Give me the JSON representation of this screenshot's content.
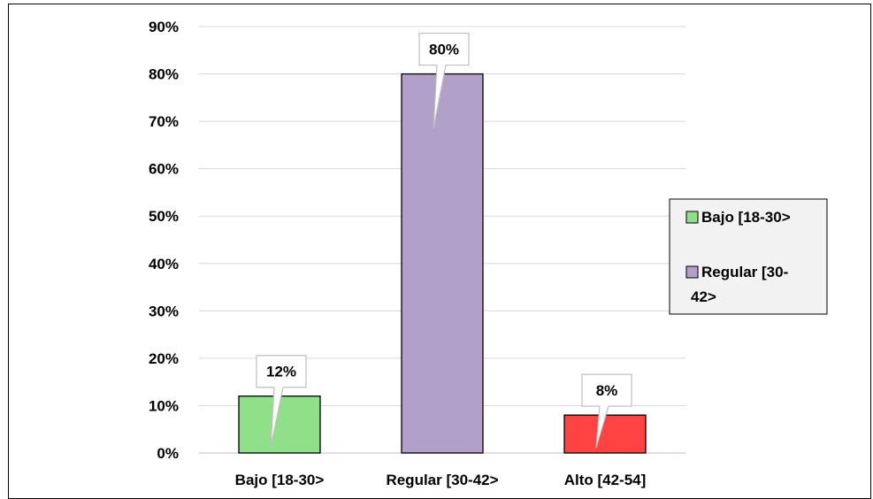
{
  "chart_data": {
    "type": "bar",
    "categories": [
      "Bajo [18-30>",
      "Regular [30-42>",
      "Alto [42-54]"
    ],
    "values": [
      12,
      80,
      8
    ],
    "value_labels": [
      "12%",
      "80%",
      "8%"
    ],
    "colors": [
      "#90E08A",
      "#B1A0C7",
      "#FF4343"
    ],
    "yticks": [
      "0%",
      "10%",
      "20%",
      "30%",
      "40%",
      "50%",
      "60%",
      "70%",
      "80%",
      "90%"
    ],
    "ylim": [
      0,
      90
    ],
    "grid": true,
    "legend": {
      "placement": "right",
      "entries": [
        {
          "lines": [
            "Bajo [18-30>"
          ],
          "color": "#90E08A"
        },
        {
          "lines": [
            "Regular [30-",
            "42>"
          ],
          "color": "#B1A0C7"
        }
      ]
    }
  }
}
